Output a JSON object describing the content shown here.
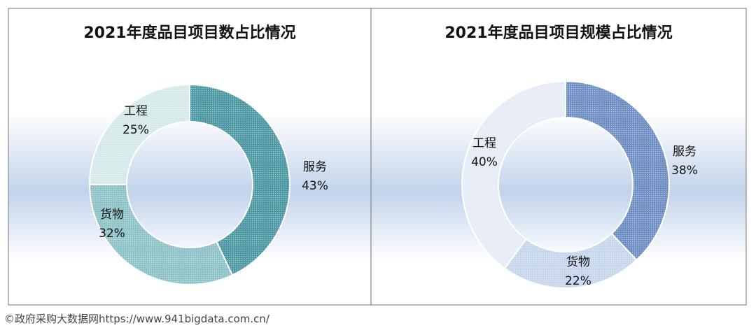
{
  "footer": "©政府采购大数据网https://www.941bigdata.com.cn/",
  "chart_data": [
    {
      "type": "pie",
      "donut": true,
      "title": "2021年度品目项目数占比情况",
      "categories": [
        "服务",
        "货物",
        "工程"
      ],
      "values": [
        43,
        32,
        25
      ],
      "value_labels": [
        "43%",
        "32%",
        "25%"
      ],
      "colors": [
        "#4e98a4",
        "#8ec3c7",
        "#d6e9ea"
      ],
      "legend": "none"
    },
    {
      "type": "pie",
      "donut": true,
      "title": "2021年度品目项目规模占比情况",
      "categories": [
        "服务",
        "货物",
        "工程"
      ],
      "values": [
        38,
        22,
        40
      ],
      "value_labels": [
        "38%",
        "22%",
        "40%"
      ],
      "colors": [
        "#6f8fc4",
        "#c7d6ec",
        "#e6ecf5"
      ],
      "legend": "none"
    }
  ]
}
